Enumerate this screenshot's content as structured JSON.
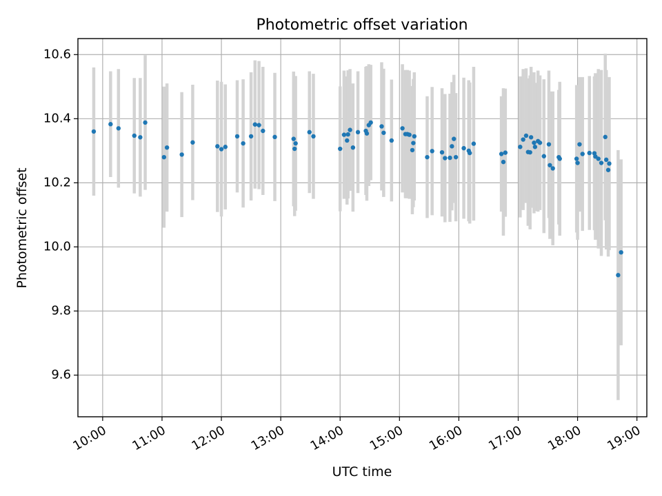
{
  "chart_data": {
    "type": "scatter",
    "title": "Photometric offset variation",
    "xlabel": "UTC time",
    "ylabel": "Photometric offset",
    "x_ticks": [
      "10:00",
      "11:00",
      "12:00",
      "13:00",
      "14:00",
      "15:00",
      "16:00",
      "17:00",
      "18:00",
      "19:00"
    ],
    "y_ticks": [
      "9.6",
      "9.8",
      "10.0",
      "10.2",
      "10.4",
      "10.6"
    ],
    "xlim": [
      "09:35",
      "19:10"
    ],
    "ylim": [
      9.47,
      10.65
    ],
    "grid": true,
    "colors": {
      "point": "#1f77b4",
      "errorbar": "#d3d3d3"
    },
    "series": [
      {
        "x": [
          "09:51",
          "10:08",
          "10:16",
          "10:32",
          "10:38",
          "10:43",
          "11:02",
          "11:05",
          "11:20",
          "11:31",
          "11:56",
          "12:00",
          "12:04",
          "12:16",
          "12:22",
          "12:30",
          "12:34",
          "12:38",
          "12:42",
          "12:54",
          "13:13",
          "13:14",
          "13:15",
          "13:29",
          "13:33",
          "14:00",
          "14:04",
          "14:07",
          "14:08",
          "14:10",
          "14:13",
          "14:18",
          "14:26",
          "14:27",
          "14:29",
          "14:31",
          "14:42",
          "14:44",
          "14:52",
          "15:03",
          "15:06",
          "15:08",
          "15:10",
          "15:13",
          "15:14",
          "15:15",
          "15:28",
          "15:33",
          "15:43",
          "15:46",
          "15:51",
          "15:53",
          "15:55",
          "15:57",
          "16:05",
          "16:10",
          "16:11",
          "16:15",
          "16:43",
          "16:45",
          "16:47",
          "17:02",
          "17:05",
          "17:08",
          "17:10",
          "17:12",
          "17:13",
          "17:16",
          "17:17",
          "17:20",
          "17:22",
          "17:26",
          "17:31",
          "17:32",
          "17:35",
          "17:41",
          "17:42",
          "17:59",
          "18:00",
          "18:02",
          "18:05",
          "18:12",
          "18:17",
          "18:18",
          "18:21",
          "18:24",
          "18:28",
          "18:29",
          "18:31",
          "18:32",
          "18:41",
          "18:44"
        ],
        "y": [
          10.36,
          10.383,
          10.37,
          10.347,
          10.342,
          10.388,
          10.28,
          10.31,
          10.288,
          10.326,
          10.314,
          10.305,
          10.312,
          10.345,
          10.323,
          10.345,
          10.382,
          10.38,
          10.362,
          10.343,
          10.337,
          10.306,
          10.323,
          10.358,
          10.345,
          10.306,
          10.35,
          10.332,
          10.351,
          10.365,
          10.31,
          10.358,
          10.362,
          10.354,
          10.38,
          10.388,
          10.376,
          10.356,
          10.332,
          10.37,
          10.352,
          10.352,
          10.35,
          10.302,
          10.324,
          10.345,
          10.28,
          10.299,
          10.295,
          10.277,
          10.278,
          10.314,
          10.337,
          10.28,
          10.308,
          10.3,
          10.293,
          10.322,
          10.29,
          10.265,
          10.294,
          10.312,
          10.335,
          10.347,
          10.296,
          10.295,
          10.342,
          10.325,
          10.312,
          10.33,
          10.325,
          10.283,
          10.32,
          10.255,
          10.245,
          10.28,
          10.275,
          10.275,
          10.262,
          10.32,
          10.29,
          10.293,
          10.292,
          10.282,
          10.275,
          10.262,
          10.343,
          10.272,
          10.24,
          10.26,
          9.912,
          9.983
        ],
        "yerr": [
          0.2,
          0.165,
          0.185,
          0.18,
          0.185,
          0.21,
          0.22,
          0.2,
          0.195,
          0.18,
          0.205,
          0.21,
          0.195,
          0.175,
          0.2,
          0.2,
          0.2,
          0.2,
          0.2,
          0.2,
          0.21,
          0.21,
          0.21,
          0.19,
          0.195,
          0.195,
          0.2,
          0.2,
          0.2,
          0.19,
          0.2,
          0.19,
          0.2,
          0.21,
          0.19,
          0.18,
          0.2,
          0.2,
          0.19,
          0.2,
          0.2,
          0.2,
          0.2,
          0.2,
          0.2,
          0.2,
          0.19,
          0.2,
          0.2,
          0.2,
          0.2,
          0.2,
          0.2,
          0.2,
          0.22,
          0.22,
          0.22,
          0.24,
          0.18,
          0.23,
          0.2,
          0.22,
          0.22,
          0.21,
          0.23,
          0.24,
          0.22,
          0.22,
          0.2,
          0.22,
          0.21,
          0.24,
          0.23,
          0.23,
          0.24,
          0.21,
          0.24,
          0.23,
          0.24,
          0.21,
          0.24,
          0.24,
          0.24,
          0.26,
          0.28,
          0.29,
          0.26,
          0.28,
          0.27,
          0.27,
          0.39,
          0.29
        ]
      }
    ]
  }
}
